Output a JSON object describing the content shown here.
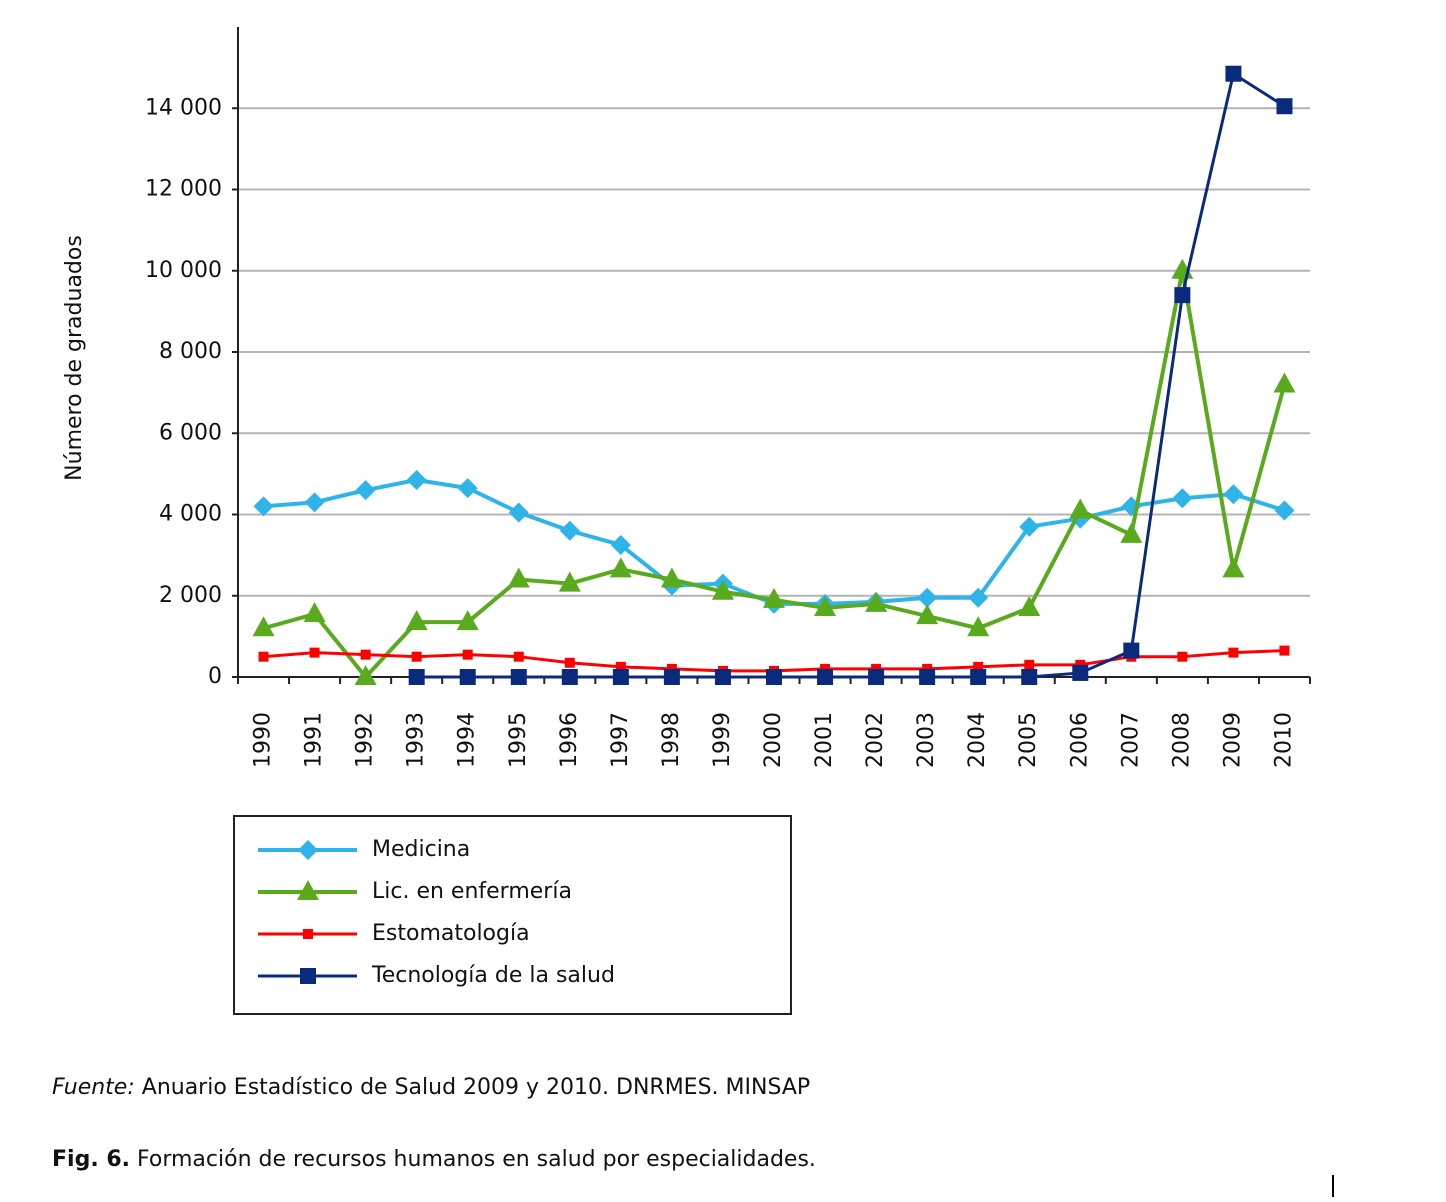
{
  "chart_data": {
    "type": "line",
    "y_label": "Número de graduados",
    "categories": [
      "1990",
      "1991",
      "1992",
      "1993",
      "1994",
      "1995",
      "1996",
      "1997",
      "1998",
      "1999",
      "2000",
      "2001",
      "2002",
      "2003",
      "2004",
      "2005",
      "2006",
      "2007",
      "2008",
      "2009",
      "2010"
    ],
    "series": [
      {
        "name": "Medicina",
        "color": "#2fb4ea",
        "marker": "diamond",
        "values": [
          4200,
          4300,
          4600,
          4850,
          4650,
          4050,
          3600,
          3250,
          2250,
          2300,
          1800,
          1800,
          1850,
          1950,
          1950,
          3700,
          3900,
          4200,
          4400,
          4500,
          4100
        ]
      },
      {
        "name": "Lic. en enfermería",
        "color": "#5aaa1e",
        "marker": "triangle",
        "values": [
          1200,
          1550,
          0,
          1350,
          1350,
          2400,
          2300,
          2650,
          2400,
          2100,
          1900,
          1700,
          1800,
          1500,
          1200,
          1700,
          4100,
          3500,
          10000,
          2650,
          7200
        ]
      },
      {
        "name": "Estomatología",
        "color": "#ff0000",
        "marker": "small-square",
        "values": [
          500,
          600,
          550,
          500,
          550,
          500,
          350,
          250,
          200,
          150,
          150,
          200,
          200,
          200,
          250,
          300,
          300,
          500,
          500,
          600,
          650
        ]
      },
      {
        "name": "Tecnología de la salud",
        "color": "#0a2a7e",
        "marker": "square",
        "values": [
          null,
          null,
          null,
          0,
          0,
          0,
          0,
          0,
          0,
          0,
          0,
          0,
          0,
          0,
          0,
          0,
          100,
          650,
          9400,
          14850,
          14050
        ]
      }
    ],
    "ylim": [
      0,
      16000
    ],
    "yticks": [
      0,
      {
        "value": 2000,
        "label": "2 000"
      },
      {
        "value": 4000,
        "label": "4 000"
      },
      {
        "value": 6000,
        "label": "6 000"
      },
      {
        "value": 8000,
        "label": "8 000"
      },
      {
        "value": 10000,
        "label": "10 000"
      },
      {
        "value": 12000,
        "label": "12 000"
      },
      {
        "value": 14000,
        "label": "14 000"
      }
    ],
    "grid": true,
    "legend": "bottom"
  },
  "source": {
    "label": "Fuente:",
    "text": "Anuario Estadístico de Salud 2009 y 2010. DNRMES. MINSAP"
  },
  "caption": {
    "label": "Fig. 6.",
    "text": "Formación de recursos humanos en salud por especialidades."
  }
}
